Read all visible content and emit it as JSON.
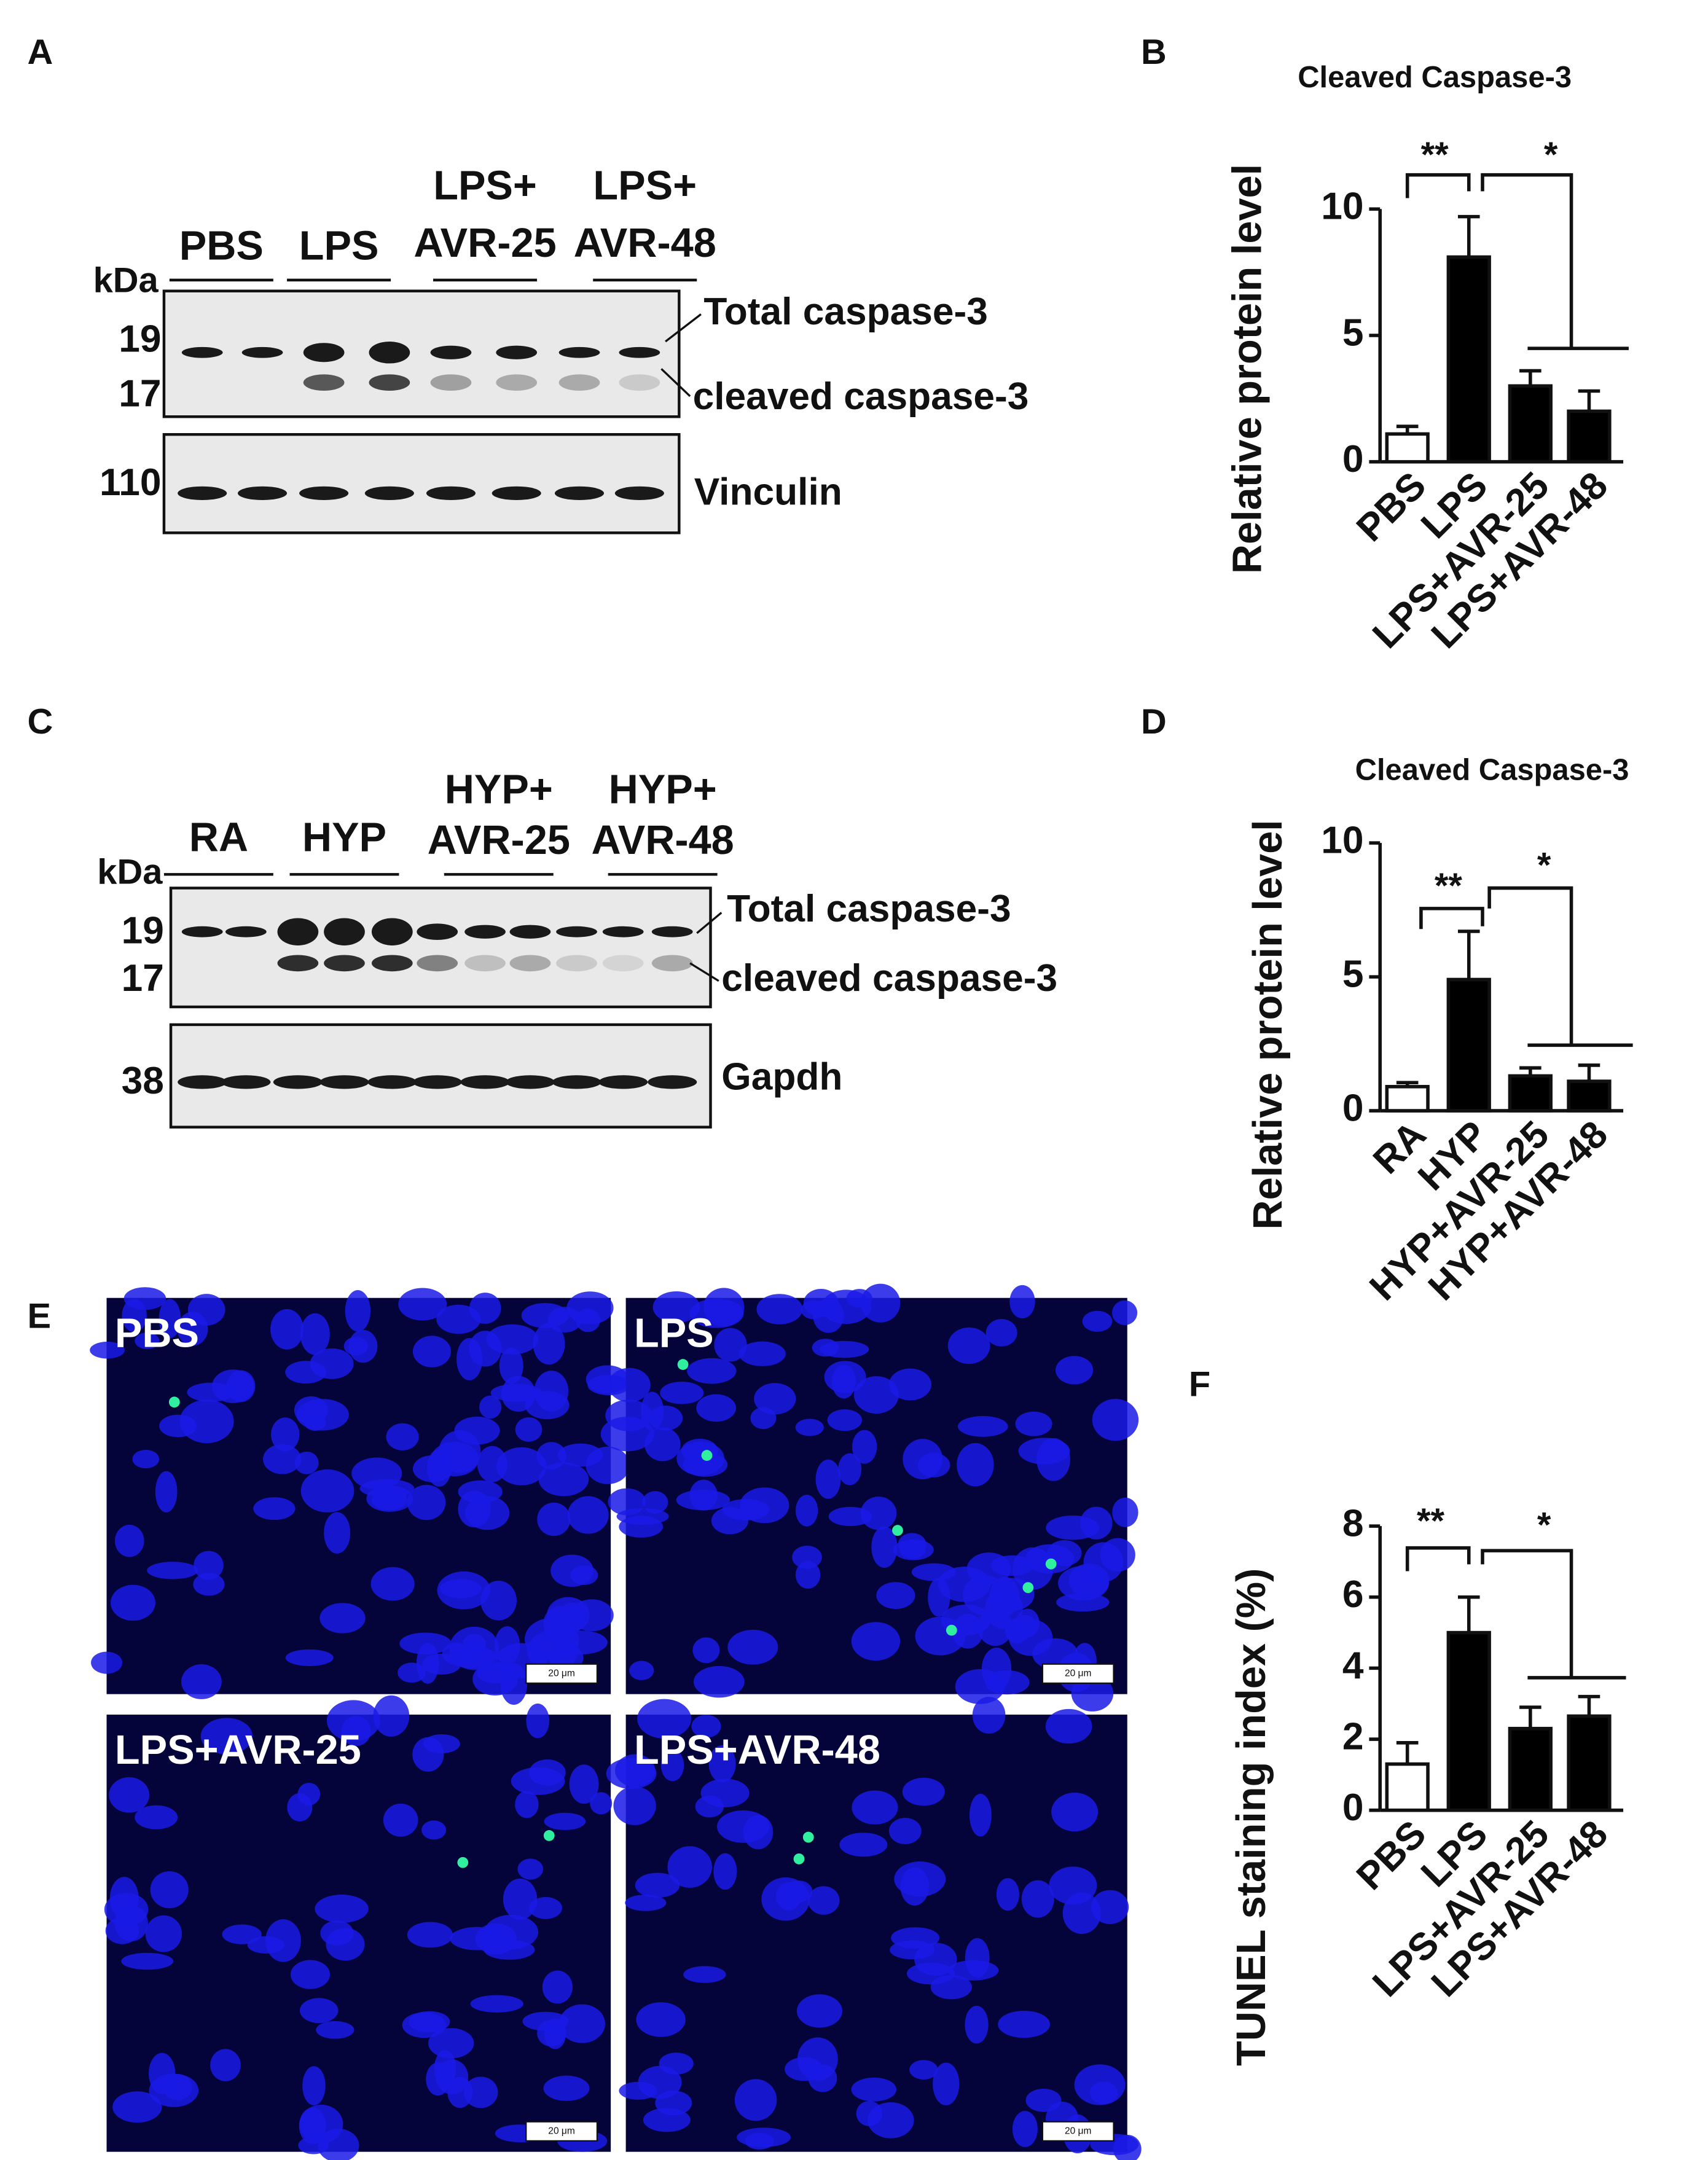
{
  "panels": [
    "A",
    "B",
    "C",
    "D",
    "E",
    "F"
  ],
  "blot_a": {
    "kda": "kDa",
    "groups": [
      [
        "PBS"
      ],
      [
        "LPS"
      ],
      [
        "LPS+",
        "AVR-25"
      ],
      [
        "LPS+",
        "AVR-48"
      ]
    ],
    "markers": [
      "19",
      "17",
      "110"
    ],
    "bands": [
      "Total caspase-3",
      "cleaved caspase-3",
      "Vinculin"
    ]
  },
  "blot_c": {
    "kda": "kDa",
    "groups": [
      [
        "RA"
      ],
      [
        "HYP"
      ],
      [
        "HYP+",
        "AVR-25"
      ],
      [
        "HYP+",
        "AVR-48"
      ]
    ],
    "markers": [
      "19",
      "17",
      "38"
    ],
    "bands": [
      "Total caspase-3",
      "cleaved caspase-3",
      "Gapdh"
    ]
  },
  "images_e": {
    "labels": [
      "PBS",
      "LPS",
      "LPS+AVR-25",
      "LPS+AVR-48"
    ],
    "scale_bar": "20 μm"
  },
  "chart_data": [
    {
      "type": "bar",
      "title": "Cleaved Caspase-3",
      "y_label": "Relative protein level",
      "categories": [
        "PBS",
        "LPS",
        "LPS+AVR-25",
        "LPS+AVR-48"
      ],
      "values": [
        1.1,
        8.1,
        3.0,
        2.0
      ],
      "errors": [
        0.3,
        1.6,
        0.6,
        0.8
      ],
      "colors": [
        "#ffffff",
        "#000000",
        "#000000",
        "#000000"
      ],
      "ylim": [
        0,
        10
      ],
      "yticks": [
        0,
        5,
        10
      ],
      "annotations": [
        "**",
        "*"
      ]
    },
    {
      "type": "bar",
      "title": "Cleaved Caspase-3",
      "y_label": "Relative protein level",
      "categories": [
        "RA",
        "HYP",
        "HYP+AVR-25",
        "HYP+AVR-48"
      ],
      "values": [
        0.9,
        4.9,
        1.3,
        1.1
      ],
      "errors": [
        0.15,
        1.8,
        0.3,
        0.6
      ],
      "colors": [
        "#ffffff",
        "#000000",
        "#000000",
        "#000000"
      ],
      "ylim": [
        0,
        10
      ],
      "yticks": [
        0,
        5,
        10
      ],
      "annotations": [
        "**",
        "*"
      ]
    },
    {
      "type": "bar",
      "y_label": "TUNEL staining index (%)",
      "categories": [
        "PBS",
        "LPS",
        "LPS+AVR-25",
        "LPS+AVR-48"
      ],
      "values": [
        1.3,
        5.0,
        2.3,
        2.65
      ],
      "errors": [
        0.6,
        1.0,
        0.6,
        0.55
      ],
      "colors": [
        "#ffffff",
        "#000000",
        "#000000",
        "#000000"
      ],
      "ylim": [
        0,
        8
      ],
      "yticks": [
        0,
        2,
        4,
        6,
        8
      ],
      "annotations": [
        "**",
        "*"
      ]
    }
  ]
}
